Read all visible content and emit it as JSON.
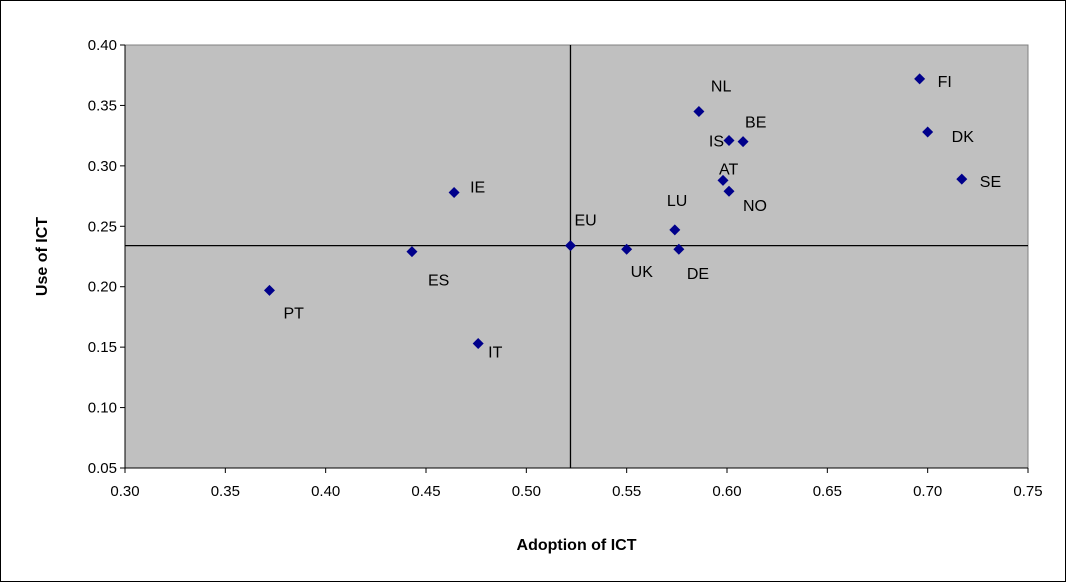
{
  "chart_data": {
    "type": "scatter",
    "title": "",
    "xlabel": "Adoption of ICT",
    "ylabel": "Use of ICT",
    "xlim": [
      0.3,
      0.75
    ],
    "ylim": [
      0.05,
      0.4
    ],
    "xticks": [
      "0.30",
      "0.35",
      "0.40",
      "0.45",
      "0.50",
      "0.55",
      "0.60",
      "0.65",
      "0.70",
      "0.75"
    ],
    "yticks": [
      "0.05",
      "0.10",
      "0.15",
      "0.20",
      "0.25",
      "0.30",
      "0.35",
      "0.40"
    ],
    "grid": false,
    "legend": "none",
    "plot_background": "#c0c0c0",
    "marker_color": "#00008b",
    "reference_lines": {
      "x": 0.522,
      "y": 0.234
    },
    "points": [
      {
        "label": "FI",
        "x": 0.696,
        "y": 0.372
      },
      {
        "label": "NL",
        "x": 0.586,
        "y": 0.345
      },
      {
        "label": "DK",
        "x": 0.7,
        "y": 0.328
      },
      {
        "label": "IS",
        "x": 0.601,
        "y": 0.321
      },
      {
        "label": "BE",
        "x": 0.608,
        "y": 0.32
      },
      {
        "label": "SE",
        "x": 0.717,
        "y": 0.289
      },
      {
        "label": "AT",
        "x": 0.598,
        "y": 0.288
      },
      {
        "label": "NO",
        "x": 0.601,
        "y": 0.279
      },
      {
        "label": "IE",
        "x": 0.464,
        "y": 0.278
      },
      {
        "label": "LU",
        "x": 0.574,
        "y": 0.247
      },
      {
        "label": "EU",
        "x": 0.522,
        "y": 0.234
      },
      {
        "label": "UK",
        "x": 0.55,
        "y": 0.231
      },
      {
        "label": "DE",
        "x": 0.576,
        "y": 0.231
      },
      {
        "label": "ES",
        "x": 0.443,
        "y": 0.229
      },
      {
        "label": "PT",
        "x": 0.372,
        "y": 0.197
      },
      {
        "label": "IT",
        "x": 0.476,
        "y": 0.153
      }
    ]
  }
}
